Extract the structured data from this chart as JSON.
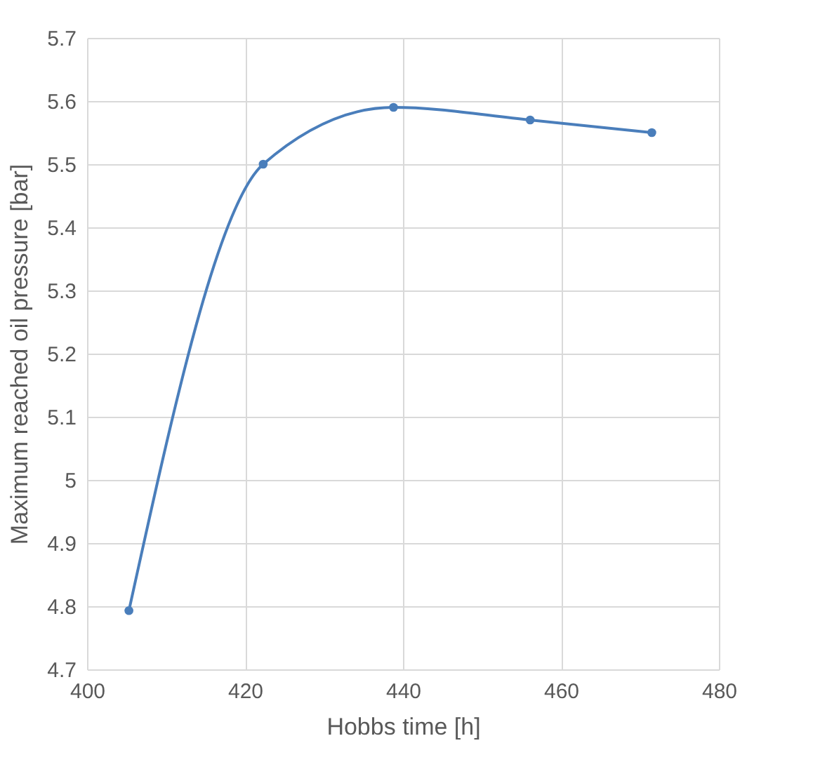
{
  "chart_data": {
    "type": "line",
    "xlabel": "Hobbs time [h]",
    "ylabel": "Maximum reached oil pressure [bar]",
    "x": [
      405.3,
      422.3,
      438.8,
      456.1,
      471.5
    ],
    "series": [
      {
        "color": "#4a7ebb",
        "values": [
          4.793,
          5.5,
          5.59,
          5.57,
          5.55
        ]
      }
    ],
    "xlim": [
      400,
      480
    ],
    "xticks": [
      400,
      420,
      440,
      460,
      480
    ],
    "ylim": [
      4.7,
      5.7
    ],
    "yticks": [
      4.7,
      4.8,
      4.9,
      5,
      5.1,
      5.2,
      5.3,
      5.4,
      5.5,
      5.6,
      5.7
    ],
    "grid": true,
    "marker": "circle",
    "line_style": "solid"
  }
}
